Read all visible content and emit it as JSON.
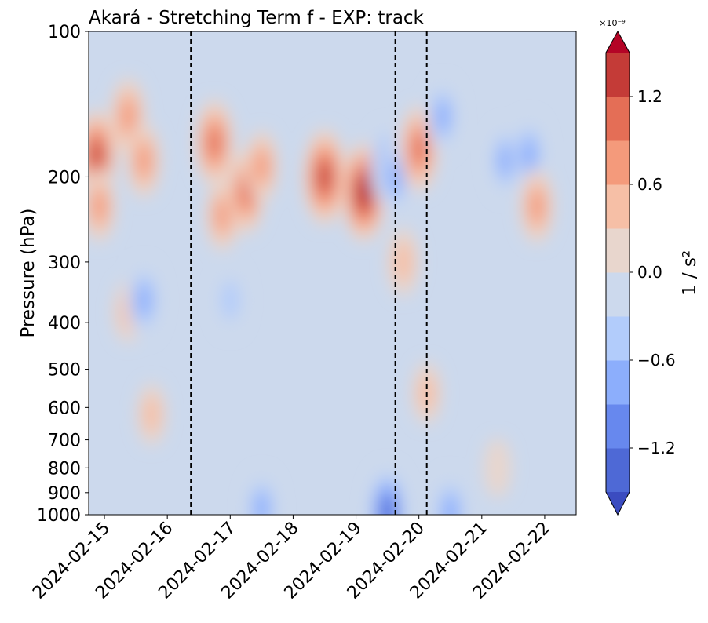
{
  "chart_data": {
    "type": "heatmap",
    "title": "Akará - Stretching Term f - EXP: track",
    "xlabel": "",
    "ylabel": "Pressure (hPa)",
    "y_scale": "log",
    "y_inverted": true,
    "ylim": [
      1000,
      100
    ],
    "y_ticks": [
      1000,
      900,
      800,
      700,
      600,
      500,
      400,
      300,
      200,
      100
    ],
    "y_tick_labels": [
      "1000",
      "900",
      "800",
      "700",
      "600",
      "500",
      "400",
      "300",
      "200",
      "100"
    ],
    "xlim": [
      "2024-02-14T18:00",
      "2024-02-22T12:00"
    ],
    "x_ticks": [
      "2024-02-15",
      "2024-02-16",
      "2024-02-17",
      "2024-02-18",
      "2024-02-19",
      "2024-02-20",
      "2024-02-21",
      "2024-02-22"
    ],
    "x_tick_labels": [
      "2024-02-15",
      "2024-02-16",
      "2024-02-17",
      "2024-02-18",
      "2024-02-19",
      "2024-02-20",
      "2024-02-21",
      "2024-02-22"
    ],
    "event_lines": [
      "2024-02-16T09:00",
      "2024-02-19T15:00",
      "2024-02-20T03:00"
    ],
    "event_line_style": "dashed black",
    "colorbar": {
      "label": "1 / s²",
      "scale_label": "×10⁻⁹",
      "levels": [
        -1.5,
        -1.2,
        -0.9,
        -0.6,
        -0.3,
        0.0,
        0.3,
        0.6,
        0.9,
        1.2,
        1.5
      ],
      "ticks": [
        -1.2,
        -0.6,
        0.0,
        0.6,
        1.2
      ],
      "tick_labels": [
        "−1.2",
        "−0.6",
        "0.0",
        "0.6",
        "1.2"
      ],
      "extend": "both",
      "colors": [
        "#3b4cc0",
        "#4e69d6",
        "#6788ee",
        "#8caefc",
        "#b2ccfb",
        "#ccd9ed",
        "#e8d6cd",
        "#f6bfa6",
        "#f49a7b",
        "#e46e56",
        "#c43b37",
        "#b40426"
      ]
    },
    "features": [
      {
        "t": "2024-02-14T21:00",
        "p": 180,
        "v": 1.4
      },
      {
        "t": "2024-02-14T22:00",
        "p": 230,
        "v": 0.8
      },
      {
        "t": "2024-02-15T09:00",
        "p": 150,
        "v": 1.0
      },
      {
        "t": "2024-02-15T15:00",
        "p": 185,
        "v": 0.9
      },
      {
        "t": "2024-02-15T09:00",
        "p": 380,
        "v": 0.5
      },
      {
        "t": "2024-02-15T15:00",
        "p": 360,
        "v": -0.9
      },
      {
        "t": "2024-02-15T18:00",
        "p": 620,
        "v": 0.5
      },
      {
        "t": "2024-02-16T18:00",
        "p": 170,
        "v": 1.3
      },
      {
        "t": "2024-02-16T21:00",
        "p": 240,
        "v": 0.8
      },
      {
        "t": "2024-02-17T06:00",
        "p": 215,
        "v": 1.2
      },
      {
        "t": "2024-02-17T12:00",
        "p": 190,
        "v": 0.8
      },
      {
        "t": "2024-02-17T00:00",
        "p": 360,
        "v": -0.6
      },
      {
        "t": "2024-02-18T12:00",
        "p": 200,
        "v": 1.6
      },
      {
        "t": "2024-02-19T03:00",
        "p": 215,
        "v": 1.7
      },
      {
        "t": "2024-02-19T12:00",
        "p": 190,
        "v": -1.1
      },
      {
        "t": "2024-02-19T15:00",
        "p": 200,
        "v": -0.9
      },
      {
        "t": "2024-02-20T00:00",
        "p": 175,
        "v": 1.3
      },
      {
        "t": "2024-02-19T18:00",
        "p": 300,
        "v": 0.7
      },
      {
        "t": "2024-02-20T09:00",
        "p": 150,
        "v": -0.8
      },
      {
        "t": "2024-02-20T03:00",
        "p": 560,
        "v": 0.5
      },
      {
        "t": "2024-02-21T09:00",
        "p": 185,
        "v": -0.8
      },
      {
        "t": "2024-02-21T18:00",
        "p": 180,
        "v": -0.9
      },
      {
        "t": "2024-02-21T21:00",
        "p": 230,
        "v": 0.9
      },
      {
        "t": "2024-02-21T06:00",
        "p": 800,
        "v": 0.4
      },
      {
        "t": "2024-02-19T12:00",
        "p": 985,
        "v": -1.4
      },
      {
        "t": "2024-02-20T12:00",
        "p": 990,
        "v": -1.0
      },
      {
        "t": "2024-02-17T12:00",
        "p": 970,
        "v": -0.8
      }
    ]
  }
}
